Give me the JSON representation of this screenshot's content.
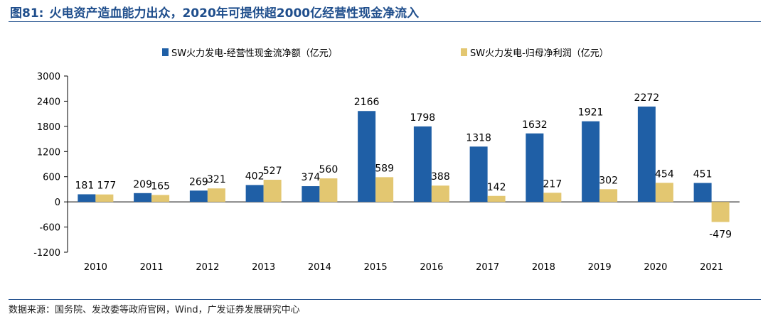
{
  "header": {
    "figure_no": "图81:",
    "title": "火电资产造血能力出众，2020年可提供超2000亿经营性现金净流入"
  },
  "source": "数据来源：国务院、发改委等政府官网，Wind，广发证券发展研究中心",
  "chart_data": {
    "type": "bar",
    "title": "火电资产造血能力出众，2020年可提供超2000亿经营性现金净流入",
    "xlabel": "",
    "ylabel": "",
    "categories": [
      "2010",
      "2011",
      "2012",
      "2013",
      "2014",
      "2015",
      "2016",
      "2017",
      "2018",
      "2019",
      "2020",
      "2021"
    ],
    "series": [
      {
        "name": "SW火力发电-经营性现金流净额（亿元）",
        "color": "#1f5fa6",
        "values": [
          181,
          209,
          269,
          402,
          374,
          2166,
          1798,
          1318,
          1632,
          1921,
          2272,
          451
        ]
      },
      {
        "name": "SW火力发电-归母净利润（亿元）",
        "color": "#e3c771",
        "values": [
          177,
          165,
          321,
          527,
          560,
          589,
          388,
          142,
          217,
          302,
          454,
          -479
        ]
      }
    ],
    "ylim": [
      -1200,
      3000
    ],
    "yticks": [
      -1200,
      -600,
      0,
      600,
      1200,
      1800,
      2400,
      3000
    ],
    "legend": "top"
  }
}
